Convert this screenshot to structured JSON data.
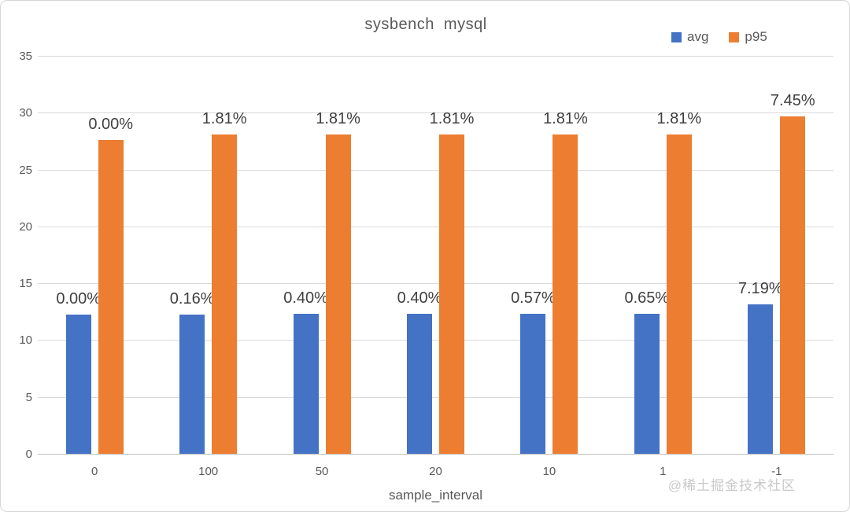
{
  "watermark": "@稀土掘金技术社区",
  "colors": {
    "avg": "#4472C4",
    "p95": "#ED7D31",
    "gridline": "#DADADA",
    "zero_axis": "#BFBFBF",
    "axis_text": "#595959",
    "data_label_text": "#3F3F3F",
    "card_border": "#D6D6D6",
    "watermark_text": "#C9C9C9"
  },
  "legend": {
    "items": [
      {
        "label": "avg",
        "swatch_color": "#4472C4"
      },
      {
        "label": "p95",
        "swatch_color": "#ED7D31"
      }
    ]
  },
  "chart_data": {
    "type": "bar",
    "title": "sysbench mysql",
    "xlabel": "sample_interval",
    "ylabel": "",
    "ylim": [
      0,
      35
    ],
    "ytick_step": 5,
    "yticks": [
      0,
      5,
      10,
      15,
      20,
      25,
      30,
      35
    ],
    "grid": true,
    "legend_position": "top-right",
    "categories": [
      "0",
      "100",
      "50",
      "20",
      "10",
      "1",
      "-1"
    ],
    "series": [
      {
        "name": "avg",
        "color": "#4472C4",
        "values": [
          12.25,
          12.27,
          12.3,
          12.3,
          12.32,
          12.33,
          13.13
        ],
        "labels": [
          "0.00%",
          "0.16%",
          "0.40%",
          "0.40%",
          "0.57%",
          "0.65%",
          "7.19%"
        ]
      },
      {
        "name": "p95",
        "color": "#ED7D31",
        "values": [
          27.6,
          28.1,
          28.1,
          28.1,
          28.1,
          28.1,
          29.66
        ],
        "labels": [
          "0.00%",
          "1.81%",
          "1.81%",
          "1.81%",
          "1.81%",
          "1.81%",
          "7.45%"
        ]
      }
    ]
  }
}
